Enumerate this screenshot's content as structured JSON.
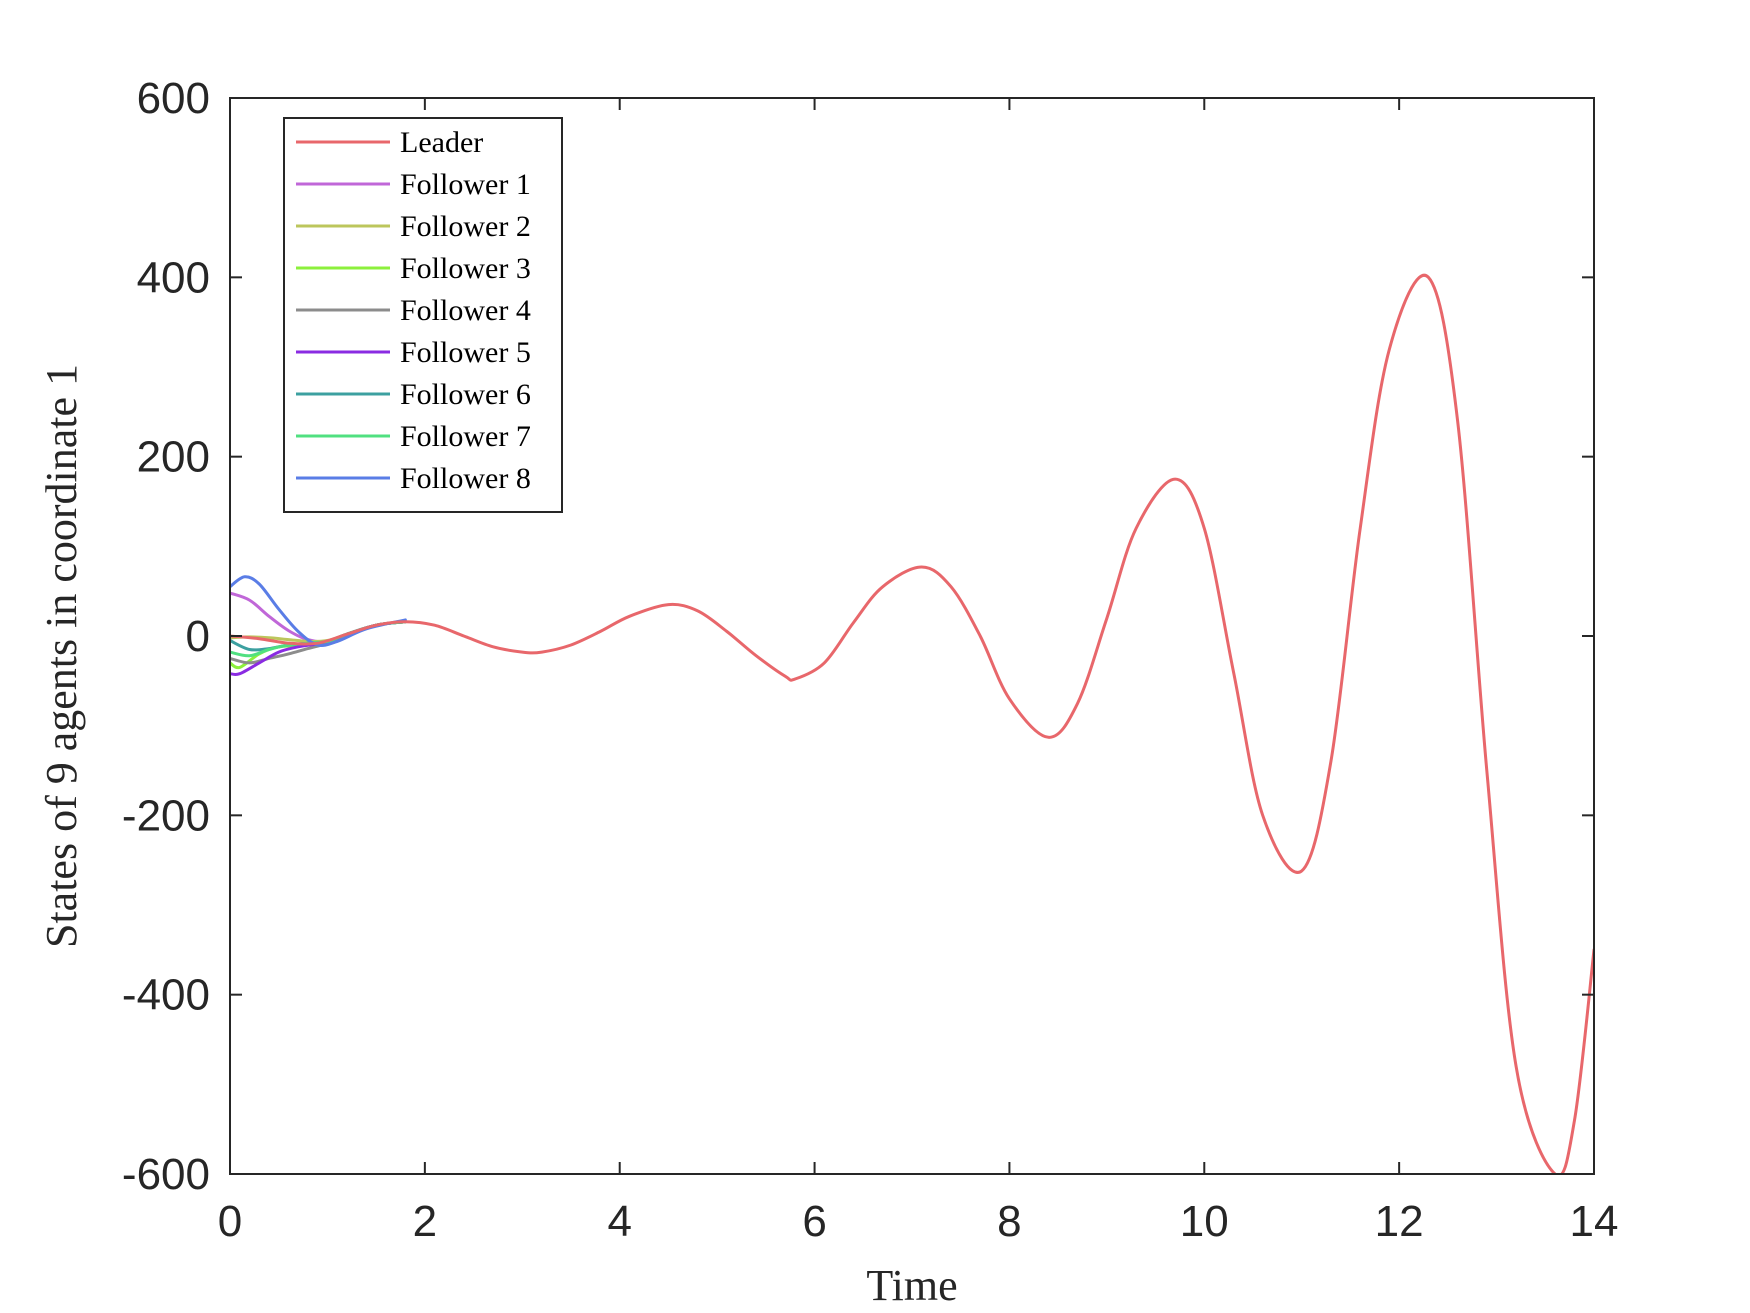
{
  "chart_data": {
    "type": "line",
    "xlabel": "Time",
    "ylabel": "States of 9 agents in coordinate 1",
    "xlim": [
      0,
      14
    ],
    "ylim": [
      -600,
      600
    ],
    "xticks": [
      0,
      2,
      4,
      6,
      8,
      10,
      12,
      14
    ],
    "yticks": [
      -600,
      -400,
      -200,
      0,
      200,
      400,
      600
    ],
    "xtick_labels": [
      "0",
      "2",
      "4",
      "6",
      "8",
      "10",
      "12",
      "14"
    ],
    "ytick_labels": [
      "-600",
      "-400",
      "-200",
      "0",
      "200",
      "400",
      "600"
    ],
    "grid": false,
    "legend_position": "top-left",
    "series": [
      {
        "name": "Leader",
        "color": "#e8676b",
        "x": [
          0,
          0.3,
          0.6,
          0.9,
          1.2,
          1.5,
          1.8,
          2.1,
          2.4,
          2.7,
          3.0,
          3.2,
          3.5,
          3.8,
          4.1,
          4.5,
          4.8,
          5.1,
          5.4,
          5.7,
          5.8,
          6.1,
          6.4,
          6.7,
          7.1,
          7.4,
          7.7,
          8.0,
          8.4,
          8.7,
          9.0,
          9.3,
          9.7,
          10.0,
          10.3,
          10.6,
          11.0,
          11.3,
          11.6,
          11.9,
          12.3,
          12.6,
          12.9,
          13.2,
          13.6,
          13.8,
          14.0
        ],
        "y": [
          0,
          -3,
          -8,
          -8,
          2,
          12,
          16,
          12,
          0,
          -12,
          -18,
          -18,
          -10,
          5,
          22,
          35,
          28,
          5,
          -22,
          -45,
          -48,
          -30,
          15,
          55,
          77,
          55,
          0,
          -70,
          -113,
          -75,
          20,
          120,
          175,
          120,
          -40,
          -200,
          -262,
          -140,
          120,
          320,
          400,
          240,
          -150,
          -480,
          -600,
          -540,
          -350
        ]
      },
      {
        "name": "Follower 1",
        "color": "#c067d8",
        "x": [
          0,
          0.2,
          0.4,
          0.6,
          0.8,
          1.0,
          1.2,
          1.5,
          1.8
        ],
        "y": [
          48,
          40,
          22,
          6,
          -4,
          -6,
          2,
          12,
          16
        ]
      },
      {
        "name": "Follower 2",
        "color": "#bcc65c",
        "x": [
          0,
          0.2,
          0.4,
          0.6,
          0.8,
          1.0,
          1.2,
          1.5,
          1.8
        ],
        "y": [
          -2,
          -1,
          -2,
          -4,
          -6,
          -5,
          2,
          12,
          16
        ]
      },
      {
        "name": "Follower 3",
        "color": "#8cf03c",
        "x": [
          0,
          0.1,
          0.3,
          0.5,
          0.8,
          1.0,
          1.2,
          1.5,
          1.8
        ],
        "y": [
          -30,
          -35,
          -20,
          -12,
          -10,
          -6,
          2,
          12,
          16
        ]
      },
      {
        "name": "Follower 4",
        "color": "#8c8c8c",
        "x": [
          0,
          0.2,
          0.4,
          0.6,
          0.8,
          1.0,
          1.2,
          1.5,
          1.8
        ],
        "y": [
          -25,
          -30,
          -25,
          -20,
          -14,
          -8,
          2,
          12,
          16
        ]
      },
      {
        "name": "Follower 5",
        "color": "#8a2be2",
        "x": [
          0,
          0.1,
          0.3,
          0.5,
          0.7,
          1.0,
          1.2,
          1.5,
          1.8
        ],
        "y": [
          -42,
          -42,
          -30,
          -18,
          -12,
          -7,
          2,
          12,
          16
        ]
      },
      {
        "name": "Follower 6",
        "color": "#3ca0a0",
        "x": [
          0,
          0.2,
          0.4,
          0.6,
          0.8,
          1.0,
          1.2,
          1.5,
          1.8
        ],
        "y": [
          -5,
          -15,
          -14,
          -10,
          -8,
          -6,
          2,
          12,
          16
        ]
      },
      {
        "name": "Follower 7",
        "color": "#50e080",
        "x": [
          0,
          0.2,
          0.4,
          0.6,
          0.8,
          1.0,
          1.2,
          1.5,
          1.8
        ],
        "y": [
          -18,
          -22,
          -15,
          -10,
          -8,
          -6,
          2,
          12,
          16
        ]
      },
      {
        "name": "Follower 8",
        "color": "#5a7de6",
        "x": [
          0,
          0.15,
          0.3,
          0.5,
          0.7,
          0.9,
          1.1,
          1.4,
          1.8
        ],
        "y": [
          55,
          66,
          58,
          30,
          5,
          -10,
          -6,
          8,
          18
        ]
      }
    ]
  }
}
